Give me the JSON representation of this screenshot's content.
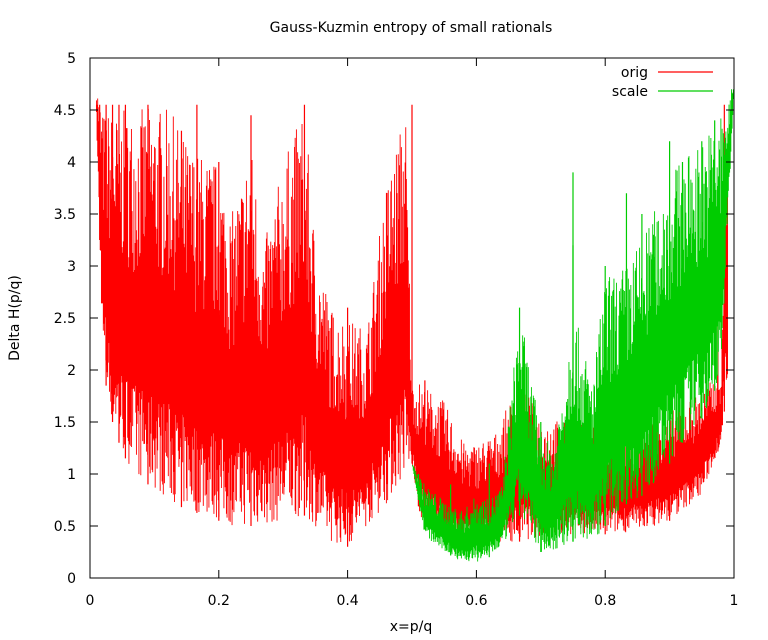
{
  "chart_data": {
    "type": "line",
    "title": "Gauss-Kuzmin entropy of small rationals",
    "xlabel": "x=p/q",
    "ylabel": "Delta H(p/q)",
    "xlim": [
      0,
      1
    ],
    "ylim": [
      0,
      5
    ],
    "x_ticks": [
      "0",
      "0.2",
      "0.4",
      "0.6",
      "0.8",
      "1"
    ],
    "y_ticks": [
      "0",
      "0.5",
      "1",
      "1.5",
      "2",
      "2.5",
      "3",
      "3.5",
      "4",
      "4.5",
      "5"
    ],
    "grid": false,
    "legend_position": "top-right",
    "series": [
      {
        "name": "orig",
        "color": "#ff0000",
        "x": [
          0.01,
          0.02,
          0.03,
          0.05,
          0.07,
          0.1,
          0.125,
          0.15,
          0.17,
          0.2,
          0.22,
          0.25,
          0.27,
          0.3,
          0.333,
          0.35,
          0.375,
          0.4,
          0.43,
          0.46,
          0.49,
          0.5,
          0.51,
          0.55,
          0.58,
          0.6,
          0.63,
          0.667,
          0.7,
          0.75,
          0.8,
          0.85,
          0.9,
          0.95,
          0.98,
          0.99
        ],
        "upper": [
          4.75,
          4.5,
          4.5,
          4.5,
          4.5,
          4.55,
          4.5,
          4.2,
          4.1,
          4.0,
          3.5,
          4.2,
          3.2,
          4.0,
          4.55,
          3.2,
          2.6,
          2.5,
          2.4,
          3.8,
          4.55,
          1.9,
          1.9,
          1.7,
          1.3,
          1.3,
          1.4,
          1.9,
          1.55,
          1.5,
          1.5,
          1.5,
          1.6,
          1.8,
          2.0,
          4.6
        ],
        "lower": [
          4.4,
          2.1,
          1.6,
          1.2,
          1.0,
          0.85,
          0.75,
          0.65,
          0.62,
          0.55,
          0.5,
          0.5,
          0.5,
          0.55,
          0.6,
          0.5,
          0.35,
          0.3,
          0.5,
          0.7,
          1.0,
          1.1,
          0.6,
          0.35,
          0.3,
          0.3,
          0.35,
          0.35,
          0.4,
          0.42,
          0.42,
          0.45,
          0.55,
          0.8,
          1.3,
          1.9
        ],
        "spikes": [
          [
            0.015,
            4.55
          ],
          [
            0.025,
            4.55
          ],
          [
            0.035,
            4.55
          ],
          [
            0.045,
            4.55
          ],
          [
            0.055,
            4.55
          ],
          [
            0.09,
            4.55
          ],
          [
            0.142,
            4.3
          ],
          [
            0.166,
            4.55
          ],
          [
            0.2,
            4.0
          ],
          [
            0.25,
            4.45
          ],
          [
            0.333,
            4.55
          ],
          [
            0.4,
            2.6
          ],
          [
            0.5,
            4.55
          ],
          [
            0.52,
            1.9
          ],
          [
            0.667,
            1.95
          ],
          [
            0.8,
            1.55
          ],
          [
            0.9,
            1.7
          ],
          [
            0.975,
            2.7
          ],
          [
            0.985,
            4.55
          ]
        ]
      },
      {
        "name": "scale",
        "color": "#00cc00",
        "x": [
          0.5,
          0.52,
          0.55,
          0.58,
          0.6,
          0.62,
          0.64,
          0.667,
          0.7,
          0.72,
          0.75,
          0.78,
          0.8,
          0.83,
          0.86,
          0.9,
          0.93,
          0.96,
          0.98,
          1.0
        ],
        "upper": [
          1.1,
          0.9,
          0.75,
          0.65,
          0.8,
          0.75,
          0.9,
          2.6,
          1.4,
          1.25,
          2.6,
          1.9,
          2.9,
          3.0,
          3.3,
          3.9,
          4.1,
          4.3,
          4.5,
          4.75
        ],
        "lower": [
          1.1,
          0.4,
          0.25,
          0.15,
          0.15,
          0.2,
          0.3,
          0.6,
          0.25,
          0.25,
          0.35,
          0.35,
          0.5,
          0.7,
          0.8,
          1.1,
          1.4,
          1.6,
          2.0,
          4.7
        ],
        "spikes": [
          [
            0.51,
            1.0
          ],
          [
            0.56,
            0.9
          ],
          [
            0.62,
            1.1
          ],
          [
            0.667,
            2.6
          ],
          [
            0.7,
            1.5
          ],
          [
            0.75,
            3.2
          ],
          [
            0.75,
            3.9
          ],
          [
            0.8,
            3.0
          ],
          [
            0.833,
            3.7
          ],
          [
            0.857,
            3.5
          ],
          [
            0.875,
            3.3
          ],
          [
            0.9,
            4.2
          ],
          [
            0.92,
            4.0
          ],
          [
            0.95,
            4.2
          ],
          [
            0.97,
            4.4
          ]
        ]
      }
    ]
  }
}
